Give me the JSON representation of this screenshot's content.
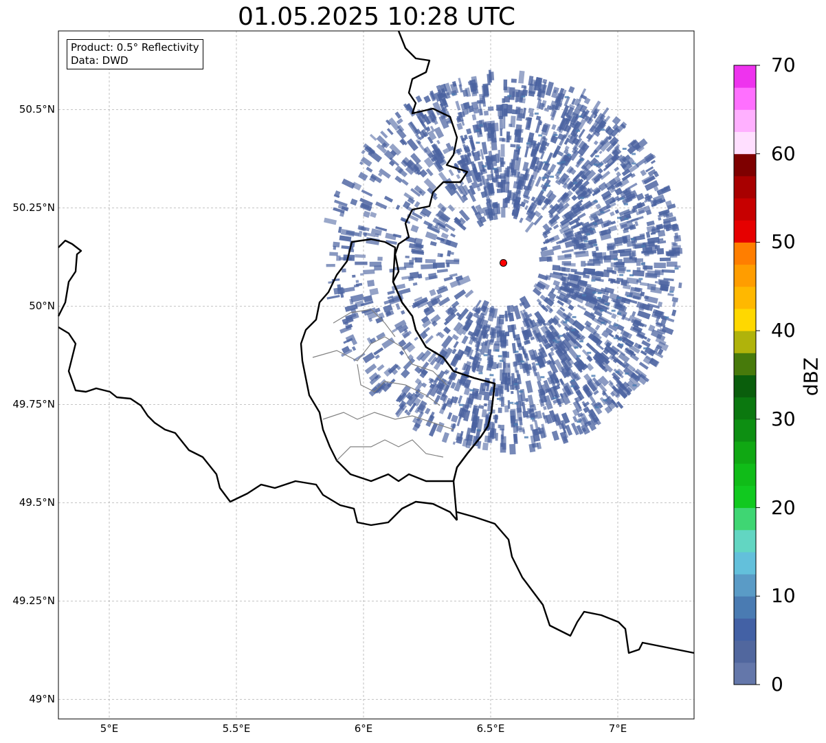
{
  "title": "01.05.2025 10:28 UTC",
  "info": {
    "product": "Product: 0.5° Reflectivity",
    "data": "Data: DWD"
  },
  "y_ticks": [
    {
      "lat": 50.5,
      "label": "50.5°N"
    },
    {
      "lat": 50.25,
      "label": "50.25°N"
    },
    {
      "lat": 50.0,
      "label": "50°N"
    },
    {
      "lat": 49.75,
      "label": "49.75°N"
    },
    {
      "lat": 49.5,
      "label": "49.5°N"
    },
    {
      "lat": 49.25,
      "label": "49.25°N"
    },
    {
      "lat": 49.0,
      "label": "49°N"
    }
  ],
  "x_ticks": [
    {
      "lon": 5.0,
      "label": "5°E"
    },
    {
      "lon": 5.5,
      "label": "5.5°E"
    },
    {
      "lon": 6.0,
      "label": "6°E"
    },
    {
      "lon": 6.5,
      "label": "6.5°E"
    },
    {
      "lon": 7.0,
      "label": "7°E"
    }
  ],
  "map_extent": {
    "lon_min": 4.8,
    "lon_max": 7.3,
    "lat_min": 48.95,
    "lat_max": 50.7
  },
  "radar_site": {
    "lon": 6.55,
    "lat": 50.11,
    "color": "#ff0000"
  },
  "colorbar": {
    "unit": "dBZ",
    "min": 0,
    "max": 70,
    "ticks": [
      "0",
      "10",
      "20",
      "30",
      "40",
      "50",
      "60",
      "70"
    ],
    "colors": [
      "#6477aa",
      "#51679e",
      "#4361a5",
      "#4a7bb2",
      "#5a9bc6",
      "#63c0db",
      "#62d6c2",
      "#3fd673",
      "#11c91f",
      "#10bc18",
      "#10a813",
      "#0d8f12",
      "#0b780f",
      "#0a5e0c",
      "#477a0b",
      "#b0b30b",
      "#ffd800",
      "#ffb800",
      "#ff9d00",
      "#ff7e00",
      "#e60000",
      "#c70000",
      "#a80000",
      "#7e0000",
      "#ffdfff",
      "#ffb0ff",
      "#ff70ff",
      "#ee33ee"
    ]
  },
  "borders_color": "#000000",
  "admin_color": "#808080",
  "echo_color": "#4a62a0"
}
